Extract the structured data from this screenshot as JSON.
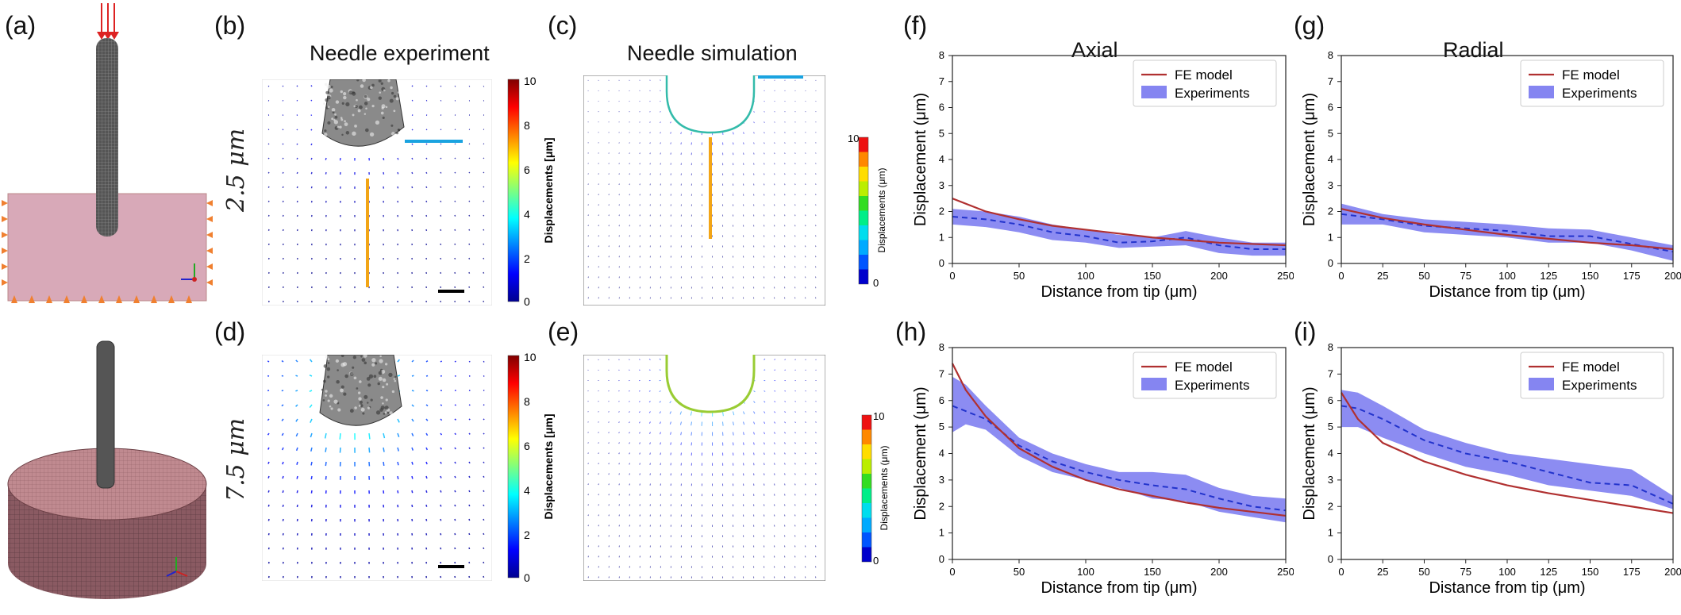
{
  "panel_labels": {
    "a": "(a)",
    "b": "(b)",
    "c": "(c)",
    "d": "(d)",
    "e": "(e)",
    "f": "(f)",
    "g": "(g)",
    "h": "(h)",
    "i": "(i)"
  },
  "headings": {
    "needle_experiment": "Needle experiment",
    "needle_simulation": "Needle simulation",
    "axial": "Axial",
    "radial": "Radial"
  },
  "row_labels": {
    "top": "2.5 μm",
    "bottom": "7.5 μm"
  },
  "colorbars": {
    "experiment_label": "Displacements [μm]",
    "simulation_label": "Displacements (μm)",
    "ticks": [
      "10",
      "8",
      "6",
      "4",
      "2",
      "0"
    ],
    "sim_ticks": [
      "10",
      "0"
    ]
  },
  "colors": {
    "fe_model": "#b03030",
    "experiments_band": "#6666ee",
    "experiments_mean": "#2233cc",
    "needle_marker_h": "#1aa3e0",
    "needle_marker_v": "#f2a516",
    "mesh": "#d8a9b8"
  },
  "chart_data": [
    {
      "id": "f",
      "type": "line",
      "title": "Axial",
      "xlabel": "Distance from tip (μm)",
      "ylabel": "Displacement (μm)",
      "xlim": [
        0,
        250
      ],
      "ylim": [
        0,
        8
      ],
      "xticks": [
        0,
        50,
        100,
        150,
        200,
        250
      ],
      "yticks": [
        0,
        1,
        2,
        3,
        4,
        5,
        6,
        7,
        8
      ],
      "legend": "top-right",
      "series": [
        {
          "name": "FE model",
          "kind": "line",
          "x": [
            0,
            25,
            50,
            75,
            100,
            125,
            150,
            175,
            200,
            225,
            250
          ],
          "y": [
            2.5,
            2.0,
            1.7,
            1.45,
            1.3,
            1.15,
            1.0,
            0.9,
            0.8,
            0.75,
            0.7
          ]
        },
        {
          "name": "Experiments",
          "kind": "band",
          "x": [
            0,
            25,
            50,
            75,
            100,
            125,
            150,
            175,
            200,
            225,
            250
          ],
          "lower": [
            1.5,
            1.4,
            1.2,
            0.9,
            0.8,
            0.6,
            0.65,
            0.7,
            0.4,
            0.3,
            0.3
          ],
          "upper": [
            2.1,
            2.0,
            1.8,
            1.5,
            1.3,
            1.1,
            1.0,
            1.25,
            1.0,
            0.8,
            0.8
          ],
          "mean": [
            1.8,
            1.7,
            1.5,
            1.2,
            1.05,
            0.8,
            0.85,
            1.0,
            0.7,
            0.55,
            0.55
          ]
        }
      ]
    },
    {
      "id": "g",
      "type": "line",
      "title": "Radial",
      "xlabel": "Distance from tip (μm)",
      "ylabel": "Displacement (μm)",
      "xlim": [
        0,
        200
      ],
      "ylim": [
        0,
        8
      ],
      "xticks": [
        0,
        25,
        50,
        75,
        100,
        125,
        150,
        175,
        200
      ],
      "yticks": [
        0,
        1,
        2,
        3,
        4,
        5,
        6,
        7,
        8
      ],
      "legend": "top-right",
      "series": [
        {
          "name": "FE model",
          "kind": "line",
          "x": [
            0,
            25,
            50,
            75,
            100,
            125,
            150,
            175,
            200
          ],
          "y": [
            2.1,
            1.75,
            1.5,
            1.3,
            1.1,
            0.95,
            0.8,
            0.7,
            0.55
          ]
        },
        {
          "name": "Experiments",
          "kind": "band",
          "x": [
            0,
            25,
            50,
            75,
            100,
            125,
            150,
            175,
            200
          ],
          "lower": [
            1.5,
            1.5,
            1.2,
            1.1,
            1.0,
            0.8,
            0.8,
            0.5,
            0.1
          ],
          "upper": [
            2.3,
            1.9,
            1.7,
            1.6,
            1.5,
            1.35,
            1.3,
            1.0,
            0.7
          ],
          "mean": [
            1.9,
            1.7,
            1.45,
            1.35,
            1.25,
            1.05,
            1.05,
            0.75,
            0.45
          ]
        }
      ]
    },
    {
      "id": "h",
      "type": "line",
      "xlabel": "Distance from tip (μm)",
      "ylabel": "Displacement (μm)",
      "xlim": [
        0,
        250
      ],
      "ylim": [
        0,
        8
      ],
      "xticks": [
        0,
        50,
        100,
        150,
        200,
        250
      ],
      "yticks": [
        0,
        1,
        2,
        3,
        4,
        5,
        6,
        7,
        8
      ],
      "legend": "top-right",
      "series": [
        {
          "name": "FE model",
          "kind": "line",
          "x": [
            0,
            10,
            25,
            50,
            75,
            100,
            125,
            150,
            175,
            200,
            225,
            250
          ],
          "y": [
            7.4,
            6.4,
            5.4,
            4.2,
            3.5,
            3.0,
            2.65,
            2.4,
            2.15,
            1.95,
            1.8,
            1.65
          ]
        },
        {
          "name": "Experiments",
          "kind": "band",
          "x": [
            0,
            10,
            25,
            50,
            75,
            100,
            125,
            150,
            175,
            200,
            225,
            250
          ],
          "lower": [
            4.8,
            5.1,
            4.9,
            3.9,
            3.3,
            3.0,
            2.7,
            2.3,
            2.2,
            1.8,
            1.6,
            1.4
          ],
          "upper": [
            6.9,
            6.6,
            5.8,
            4.6,
            4.0,
            3.6,
            3.3,
            3.3,
            3.2,
            2.7,
            2.4,
            2.3
          ],
          "mean": [
            5.8,
            5.6,
            5.3,
            4.3,
            3.7,
            3.3,
            3.0,
            2.8,
            2.65,
            2.3,
            2.0,
            1.85
          ]
        }
      ]
    },
    {
      "id": "i",
      "type": "line",
      "xlabel": "Distance from tip (μm)",
      "ylabel": "Displacement (μm)",
      "xlim": [
        0,
        200
      ],
      "ylim": [
        0,
        8
      ],
      "xticks": [
        0,
        25,
        50,
        75,
        100,
        125,
        150,
        175,
        200
      ],
      "yticks": [
        0,
        1,
        2,
        3,
        4,
        5,
        6,
        7,
        8
      ],
      "legend": "top-right",
      "series": [
        {
          "name": "FE model",
          "kind": "line",
          "x": [
            0,
            10,
            25,
            50,
            75,
            100,
            125,
            150,
            175,
            200
          ],
          "y": [
            6.3,
            5.3,
            4.4,
            3.7,
            3.2,
            2.8,
            2.5,
            2.25,
            2.0,
            1.75
          ]
        },
        {
          "name": "Experiments",
          "kind": "band",
          "x": [
            0,
            10,
            25,
            50,
            75,
            100,
            125,
            150,
            175,
            200
          ],
          "lower": [
            5.0,
            5.0,
            4.6,
            4.0,
            3.5,
            3.2,
            2.8,
            2.6,
            2.4,
            1.9
          ],
          "upper": [
            6.4,
            6.3,
            5.8,
            4.9,
            4.4,
            4.0,
            3.8,
            3.6,
            3.4,
            2.4
          ],
          "mean": [
            5.8,
            5.7,
            5.3,
            4.5,
            4.0,
            3.7,
            3.3,
            2.9,
            2.8,
            2.1
          ]
        }
      ]
    }
  ]
}
